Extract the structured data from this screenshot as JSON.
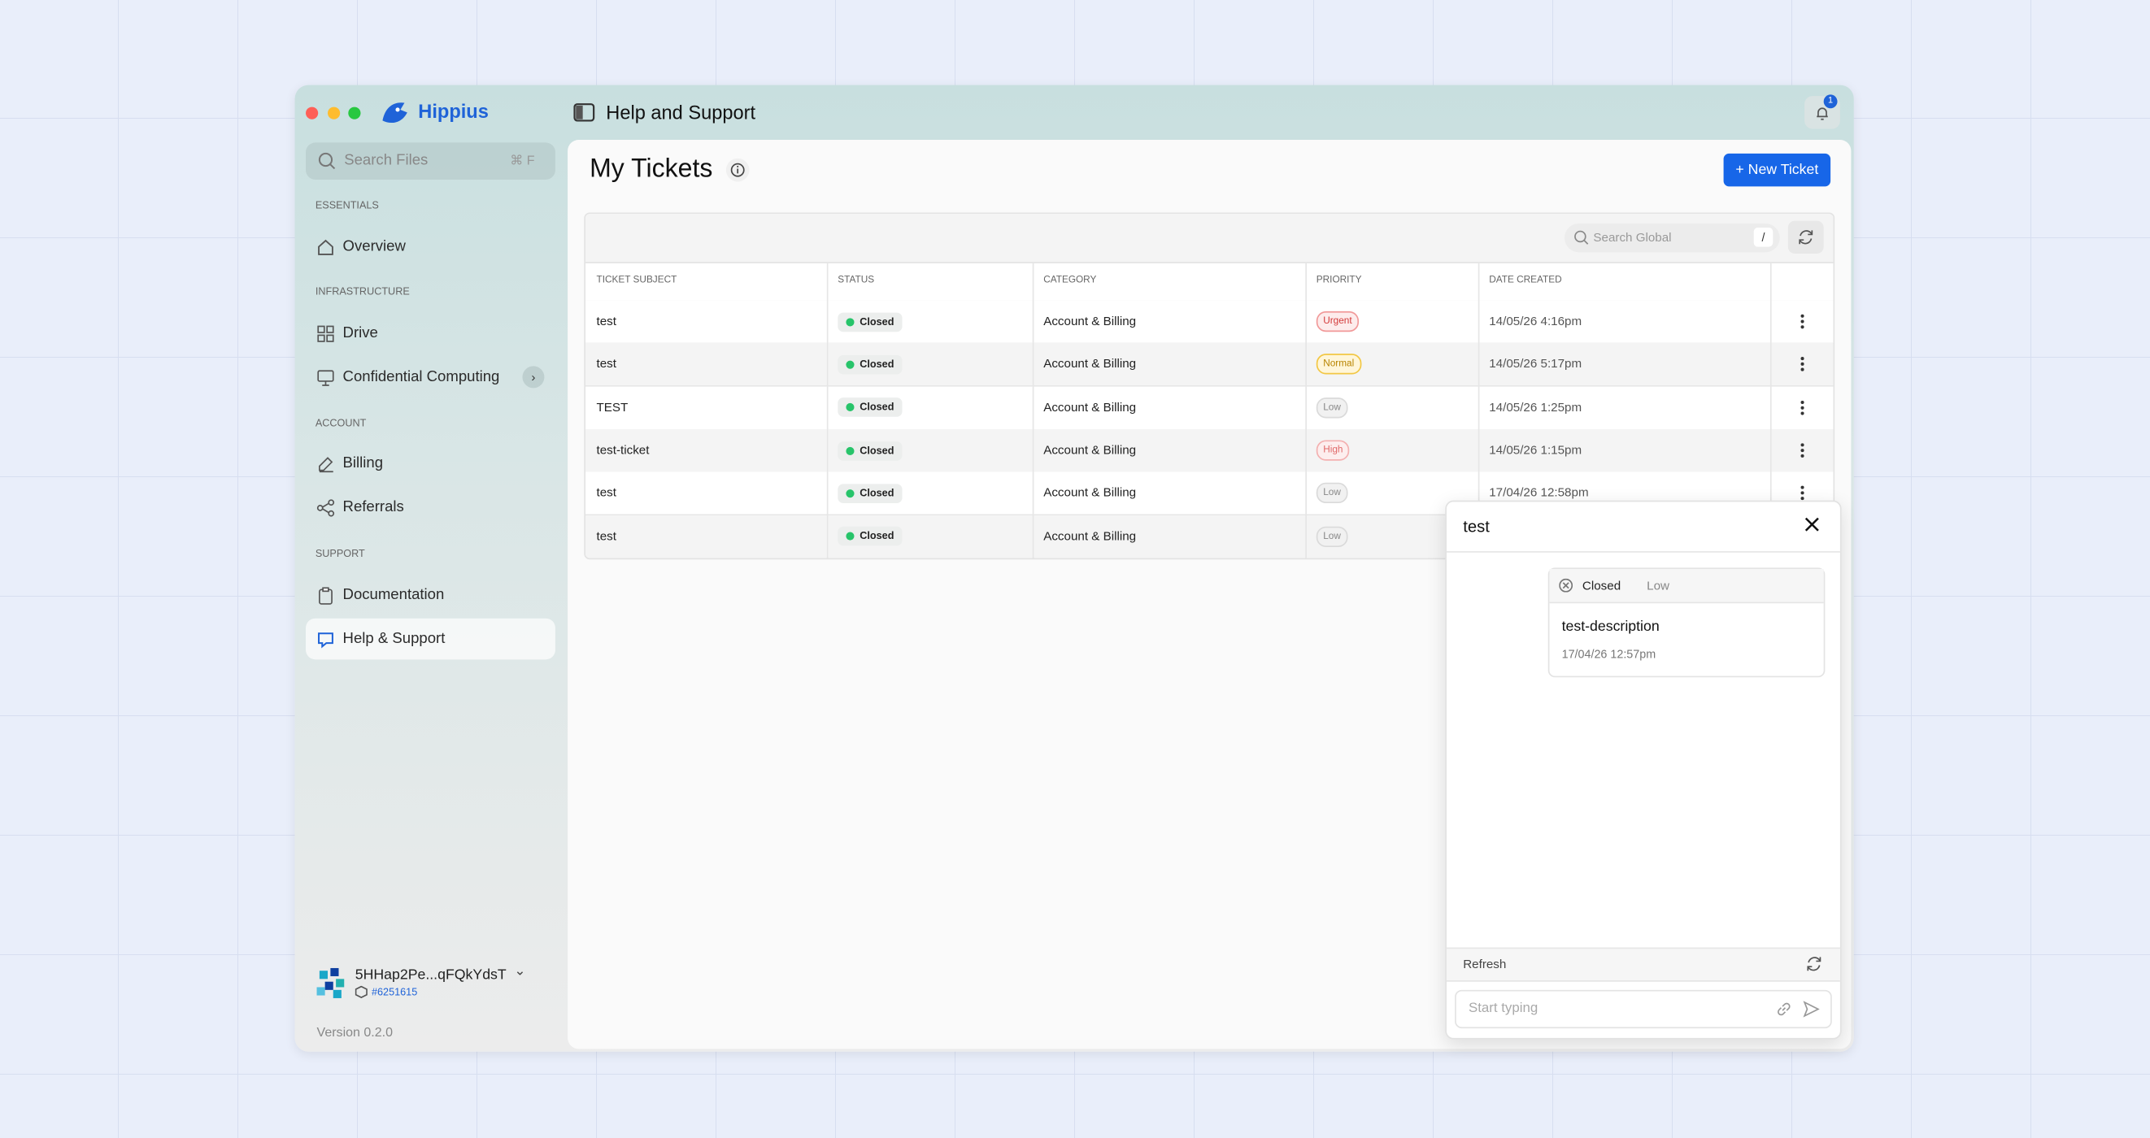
{
  "window": {
    "brand": "Hippius",
    "page_title": "Help and Support",
    "notification_count": "1"
  },
  "sidebar": {
    "search_placeholder": "Search Files",
    "search_shortcut": "⌘ F",
    "sections": [
      {
        "heading": "ESSENTIALS",
        "items": [
          "Overview"
        ]
      },
      {
        "heading": "INFRASTRUCTURE",
        "items": [
          "Drive",
          "Confidential Computing"
        ]
      },
      {
        "heading": "ACCOUNT",
        "items": [
          "Billing",
          "Referrals"
        ]
      },
      {
        "heading": "SUPPORT",
        "items": [
          "Documentation",
          "Help & Support"
        ]
      }
    ],
    "account": {
      "address": "5HHap2Pe...qFQkYdsT",
      "id": "#6251615"
    },
    "version": "Version 0.2.0"
  },
  "main": {
    "title": "My Tickets",
    "new_button": "+ New Ticket",
    "search_placeholder": "Search Global",
    "search_key": "/"
  },
  "table": {
    "columns": [
      "TICKET SUBJECT",
      "STATUS",
      "CATEGORY",
      "PRIORITY",
      "DATE CREATED"
    ],
    "rows": [
      [
        "test",
        "Closed",
        "Account & Billing",
        "Urgent",
        "14/05/26 4:16pm"
      ],
      [
        "test",
        "Closed",
        "Account & Billing",
        "Normal",
        "14/05/26 5:17pm"
      ],
      [
        "TEST",
        "Closed",
        "Account & Billing",
        "Low",
        "14/05/26 1:25pm"
      ],
      [
        "test-ticket",
        "Closed",
        "Account & Billing",
        "High",
        "14/05/26 1:15pm"
      ],
      [
        "test",
        "Closed",
        "Account & Billing",
        "Low",
        "17/04/26 12:58pm"
      ],
      [
        "test",
        "Closed",
        "Account & Billing",
        "Low"
      ]
    ]
  },
  "ticket_panel": {
    "title": "test",
    "status": "Closed",
    "priority": "Low",
    "description": "test-description",
    "date": "17/04/26 12:57pm",
    "refresh": "Refresh",
    "input_placeholder": "Start typing"
  }
}
